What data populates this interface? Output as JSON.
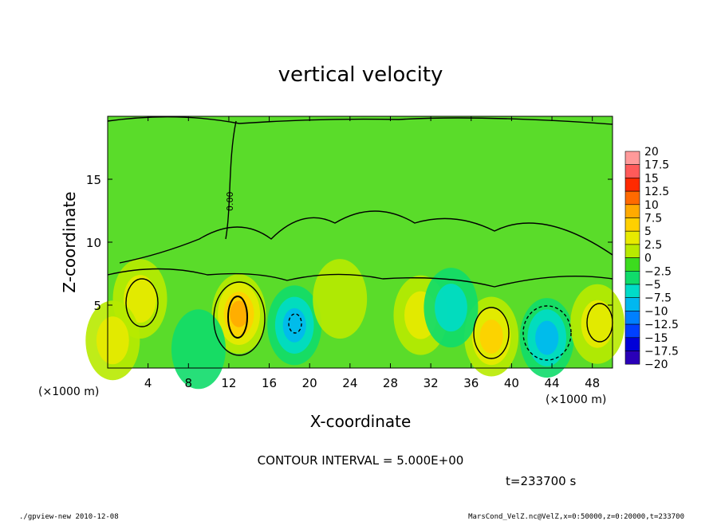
{
  "chart_data": {
    "type": "heatmap",
    "title": "vertical velocity",
    "xlabel": "X-coordinate",
    "ylabel": "Z-coordinate",
    "x_unit": "(×1000 m)",
    "y_unit": "(×1000 m)",
    "xlim": [
      0,
      50
    ],
    "ylim": [
      0,
      20
    ],
    "x_ticks": [
      "4",
      "8",
      "12",
      "16",
      "20",
      "24",
      "28",
      "32",
      "36",
      "40",
      "44",
      "48"
    ],
    "y_ticks": [
      "5",
      "10",
      "15"
    ],
    "contour_interval_text": "CONTOUR INTERVAL = 5.000E+00",
    "contour_label": "0.00",
    "time_text": "t=233700 s",
    "colorbar": {
      "labels": [
        "20",
        "17.5",
        "15",
        "12.5",
        "10",
        "7.5",
        "5",
        "2.5",
        "0",
        "−2.5",
        "−5",
        "−7.5",
        "−10",
        "−12.5",
        "−15",
        "−17.5",
        "−20"
      ],
      "colors": [
        "#ff9a9a",
        "#ff5a5a",
        "#ff2a00",
        "#ff6a00",
        "#ffaa00",
        "#ffd000",
        "#e8ea00",
        "#b8ea00",
        "#3cdc1e",
        "#10dc6a",
        "#00dcc8",
        "#00b8f0",
        "#0080ff",
        "#0040ff",
        "#0000d8",
        "#2a00b8",
        "#7000c0"
      ]
    },
    "features": [
      {
        "x": 13,
        "z": 4.3,
        "w": 9.5
      },
      {
        "x": 18.5,
        "z": 3.4,
        "w": -8.5
      },
      {
        "x": 38,
        "z": 2.5,
        "w": 7.5
      },
      {
        "x": 43.5,
        "z": 2.4,
        "w": -6.5
      },
      {
        "x": 3.2,
        "z": 5.5,
        "w": 4.5
      },
      {
        "x": 31,
        "z": 4.2,
        "w": 4
      },
      {
        "x": 34,
        "z": 4.8,
        "w": -4
      },
      {
        "x": 48.5,
        "z": 3.5,
        "w": 4
      },
      {
        "x": 0.5,
        "z": 2.2,
        "w": 4
      },
      {
        "x": 9,
        "z": 1.5,
        "w": -3
      },
      {
        "x": 23,
        "z": 5.5,
        "w": 2.5
      }
    ]
  },
  "footer": {
    "left": "./gpview-new   2010-12-08",
    "right": "MarsCond_VelZ.nc@VelZ,x=0:50000,z=0:20000,t=233700"
  }
}
